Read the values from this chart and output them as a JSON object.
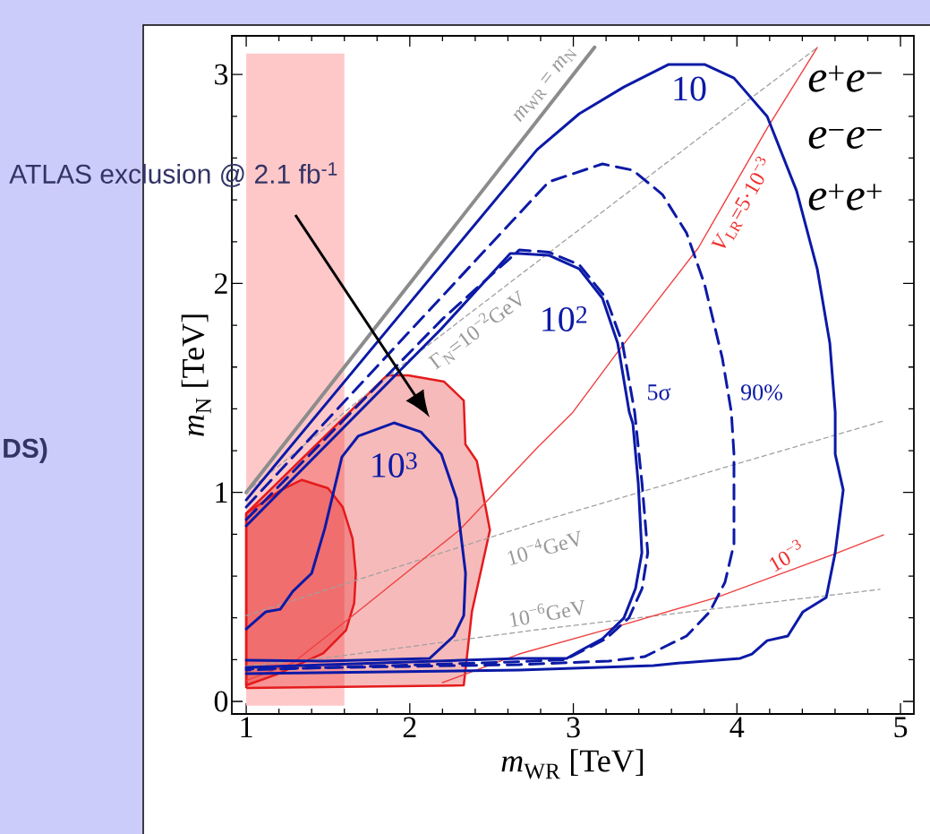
{
  "chart_data": {
    "type": "line",
    "xlabel": "*m*$_{WR}$ [TeV]",
    "ylabel": "*m*$_{N}$ [TeV]",
    "xlim": [
      0.912,
      5.082
    ],
    "ylim": [
      -0.06,
      3.185
    ],
    "xticks": [
      1,
      2,
      3,
      4,
      5
    ],
    "yticks": [
      0,
      1,
      2,
      3
    ],
    "bands": [
      {
        "axis": "x",
        "from": 1,
        "to": 1.6,
        "color": "#ffc8c8"
      }
    ],
    "series": [
      {
        "type": "area",
        "color": "#e41a1c",
        "x": [
          1,
          2.33,
          2.38,
          2.49,
          2.41,
          2.34,
          2.33,
          2.21,
          1.99,
          1.86,
          1.0,
          1
        ],
        "values": [
          0.064,
          0.077,
          0.43,
          0.82,
          1.15,
          1.23,
          1.44,
          1.53,
          1.56,
          1.56,
          0.9,
          0.064
        ]
      },
      {
        "type": "area",
        "color": "#e41a1c",
        "x": [
          1,
          1.19,
          1.47,
          1.61,
          1.66,
          1.67,
          1.65,
          1.59,
          1.5,
          1.34,
          1.21,
          1,
          1
        ],
        "values": [
          0.077,
          0.13,
          0.23,
          0.34,
          0.47,
          0.61,
          0.78,
          0.93,
          1.02,
          1.06,
          1.01,
          0.9,
          0.077
        ]
      },
      {
        "color": "#8c8c8c",
        "x": [
          1,
          3.13
        ],
        "values": [
          1,
          3.13
        ]
      },
      {
        "color": "#a0a0a0",
        "line_style": "dashed",
        "x": [
          1,
          1.958,
          4.491
        ],
        "values": [
          1.0,
          1.612,
          3.129
        ]
      },
      {
        "color": "#a0a0a0",
        "line_style": "dashed",
        "x": [
          1,
          2.778,
          4.896
        ],
        "values": [
          0.411,
          0.857,
          1.342
        ]
      },
      {
        "color": "#a0a0a0",
        "line_style": "dashed",
        "x": [
          1,
          1.465,
          2.778,
          4.874
        ],
        "values": [
          0.17,
          0.206,
          0.343,
          0.536
        ]
      },
      {
        "color": "#f04040",
        "x": [
          1,
          1.285,
          1.646,
          2.302,
          2.778,
          2.997,
          3.271,
          3.763,
          4.185,
          4.491
        ],
        "values": [
          0.1,
          0.184,
          0.407,
          0.819,
          1.213,
          1.384,
          1.672,
          2.169,
          2.743,
          3.129
        ]
      },
      {
        "color": "#f04040",
        "x": [
          2.2,
          2.669,
          3.216,
          3.873,
          4.601,
          4.896
        ],
        "values": [
          0.09,
          0.227,
          0.347,
          0.497,
          0.707,
          0.797
        ]
      },
      {
        "color": "#0c1aa6",
        "x": [
          1.0,
          2.0,
          2.778,
          3.036,
          3.309,
          3.583,
          3.802,
          3.982,
          4.185,
          4.365,
          4.491,
          4.568,
          4.601,
          4.601,
          4.65,
          4.601,
          4.546,
          4.404,
          4.311,
          4.185,
          4.092,
          4.02,
          3.654,
          3.49,
          2.669,
          1.0
        ],
        "values": [
          0.964,
          1.907,
          2.64,
          2.812,
          2.94,
          3.048,
          3.048,
          2.983,
          2.799,
          2.443,
          2.07,
          1.715,
          1.384,
          1.183,
          1.012,
          0.712,
          0.497,
          0.429,
          0.313,
          0.291,
          0.227,
          0.206,
          0.184,
          0.171,
          0.15,
          0.133
        ]
      },
      {
        "color": "#0c1aa6",
        "line_style": "dashed",
        "x": [
          1.0,
          2.849,
          3.178,
          3.364,
          3.544,
          3.692,
          3.802,
          3.911,
          3.966,
          3.982,
          3.982,
          3.927,
          3.834,
          3.692,
          3.435,
          3.216,
          2.669,
          1.0
        ],
        "values": [
          0.93,
          2.486,
          2.572,
          2.542,
          2.426,
          2.242,
          1.997,
          1.642,
          1.384,
          1.183,
          0.754,
          0.57,
          0.429,
          0.313,
          0.214,
          0.193,
          0.176,
          0.155
        ]
      },
      {
        "color": "#0c1aa6",
        "x": [
          1.0,
          2.193,
          2.614,
          2.669,
          2.849,
          3.036,
          3.178,
          3.271,
          3.342,
          3.364,
          3.397,
          3.419,
          3.38,
          3.309,
          3.178,
          3.036,
          2.959,
          2.669,
          1.0
        ],
        "values": [
          0.84,
          1.783,
          2.143,
          2.143,
          2.135,
          2.07,
          1.929,
          1.715,
          1.384,
          1.329,
          1.042,
          0.712,
          0.54,
          0.399,
          0.3,
          0.24,
          0.206,
          0.206,
          0.163
        ]
      },
      {
        "color": "#0c1aa6",
        "line_style": "dashed",
        "x": [
          1.0,
          2.2,
          2.669,
          2.849,
          3.036,
          3.2,
          3.3,
          3.375,
          3.42,
          3.455,
          3.42,
          3.34,
          3.2,
          2.95,
          2.669,
          1.0
        ],
        "values": [
          0.87,
          1.83,
          2.16,
          2.15,
          2.09,
          1.93,
          1.715,
          1.384,
          1.042,
          0.712,
          0.54,
          0.4,
          0.3,
          0.2,
          0.19,
          0.15
        ]
      },
      {
        "color": "#0c1aa6",
        "x": [
          1.0,
          1.12,
          1.208,
          1.285,
          1.4,
          1.48,
          1.585,
          1.684,
          1.903,
          2.067,
          2.193,
          2.286,
          2.341,
          2.33,
          2.269,
          2.122,
          1.465,
          1.0
        ],
        "values": [
          0.347,
          0.429,
          0.441,
          0.527,
          0.613,
          0.827,
          1.17,
          1.269,
          1.333,
          1.29,
          1.183,
          0.969,
          0.613,
          0.411,
          0.313,
          0.206,
          0.193,
          0.197
        ]
      }
    ],
    "annotations": [
      "ATLAS exclusion @ 2.1 fb$^{-1}$",
      "DS)",
      "*e*$^{+}$*e*$^{−}$",
      "*e*$^{−}$*e*$^{−}$",
      "*e*$^{+}$*e*$^{+}$",
      "5σ",
      "90%",
      "10",
      "10$^{2}$",
      "10$^{3}$",
      "*m*$_{WR}$ = *m*$_{N}$",
      "Γ$_{N}$=10$^{−2}$GeV",
      "*V*$_{LR}$=5·10$^{−3}$",
      "10$^{−4}$GeV",
      "10$^{−6}$GeV",
      "10$^{−3}$"
    ]
  }
}
